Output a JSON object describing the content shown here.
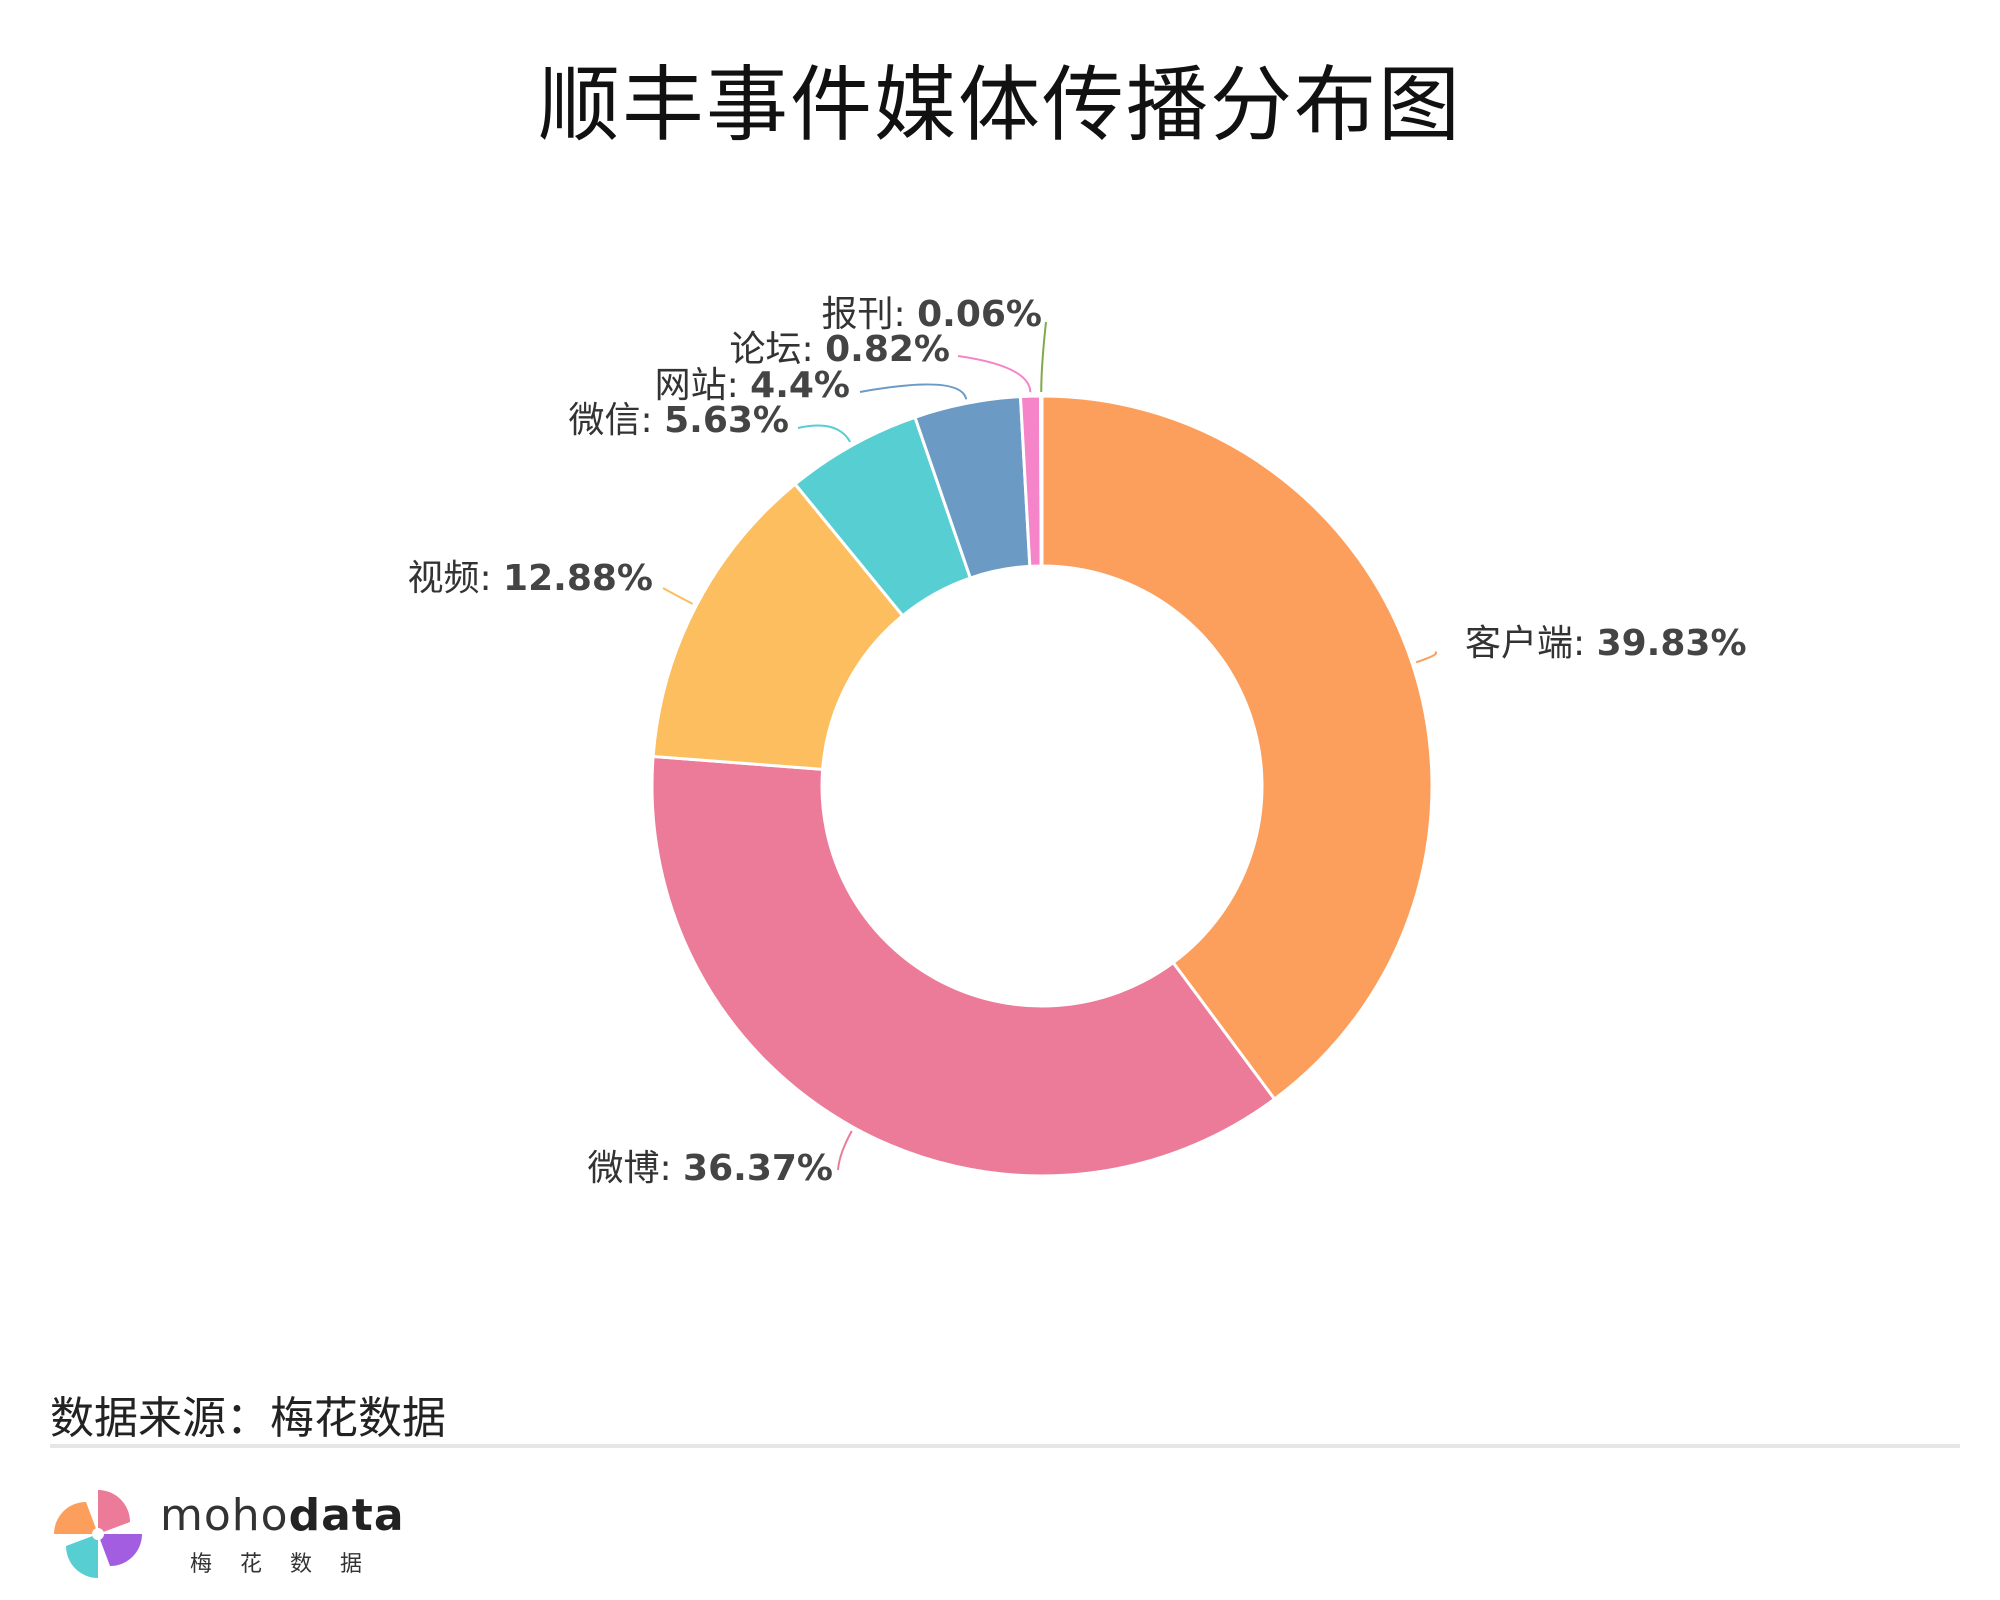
{
  "chart_data": {
    "type": "pie",
    "title": "顺丰事件媒体传播分布图",
    "slices": [
      {
        "label": "客户端",
        "value": 39.83,
        "display": "39.83%",
        "color": "#FC9E5C"
      },
      {
        "label": "微博",
        "value": 36.37,
        "display": "36.37%",
        "color": "#EC7A99"
      },
      {
        "label": "视频",
        "value": 12.88,
        "display": "12.88%",
        "color": "#FCBE5F"
      },
      {
        "label": "微信",
        "value": 5.63,
        "display": "5.63%",
        "color": "#57CFD2"
      },
      {
        "label": "网站",
        "value": 4.4,
        "display": "4.4%",
        "color": "#6B9BC5"
      },
      {
        "label": "论坛",
        "value": 0.82,
        "display": "0.82%",
        "color": "#F584C8"
      },
      {
        "label": "报刊",
        "value": 0.06,
        "display": "0.06%",
        "color": "#7FAA4C"
      }
    ],
    "style": "donut"
  },
  "footer": {
    "source": "数据来源：梅花数据",
    "brand_light": "moho",
    "brand_bold": "data",
    "brand_sub": "梅花数据"
  },
  "colors": {
    "background": "#ffffff",
    "divider": "#e6e6e6"
  }
}
